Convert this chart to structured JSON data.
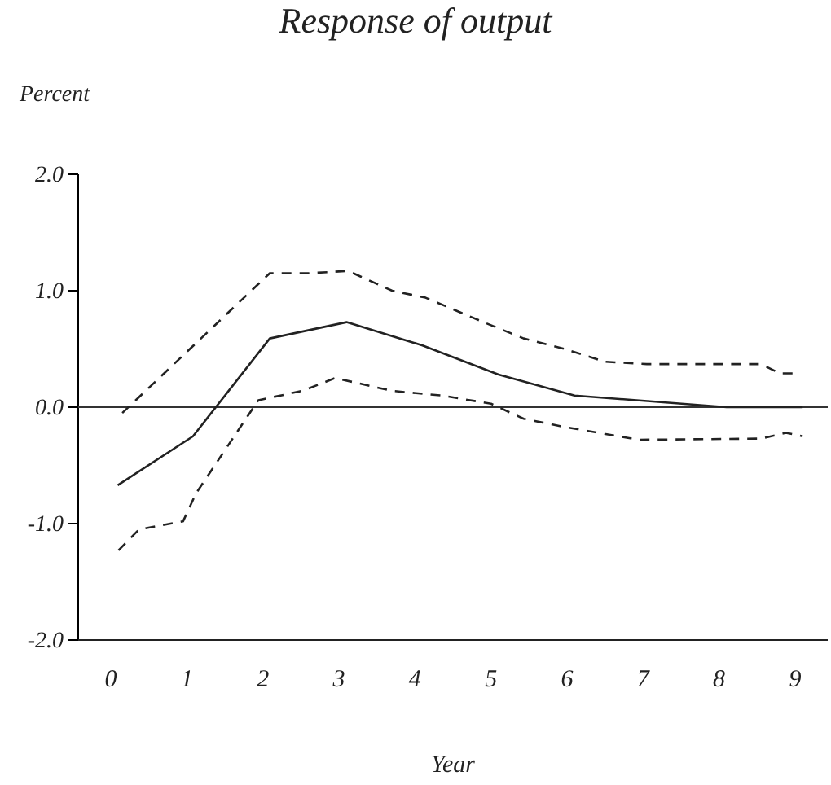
{
  "chart_data": {
    "type": "line",
    "title": "Response of output",
    "ylabel": "Percent",
    "xlabel": "Year",
    "xlim": [
      -0.43,
      9.43
    ],
    "xticks": [
      0,
      1,
      2,
      3,
      4,
      5,
      6,
      7,
      8,
      9
    ],
    "ylim": [
      -2.0,
      2.0
    ],
    "yticks": [
      {
        "value": -2,
        "label": "-2.0"
      },
      {
        "value": -1,
        "label": "-1.0"
      },
      {
        "value": 0,
        "label": "0.0"
      },
      {
        "value": 1,
        "label": "1.0"
      },
      {
        "value": 2,
        "label": "2.0"
      }
    ],
    "ref_lines": [
      {
        "axis": "y",
        "value": 0,
        "color": "#333333",
        "line_style": "solid"
      }
    ],
    "series": [
      {
        "color": "#222222",
        "line_style": "solid",
        "x": [
          0.09,
          1.08,
          2.09,
          3.1,
          4.1,
          5.1,
          6.1,
          8.1,
          9.1
        ],
        "values": [
          -0.67,
          -0.25,
          0.59,
          0.73,
          0.53,
          0.28,
          0.1,
          0,
          0
        ]
      },
      {
        "color": "#222222",
        "line_style": "dashed",
        "x": [
          0.15,
          2.09,
          2.6,
          3.12,
          3.7,
          4.14,
          4.9,
          5.43,
          5.97,
          6.5,
          7.05,
          8.55,
          8.8,
          9.03
        ],
        "values": [
          -0.05,
          1.15,
          1.15,
          1.17,
          1.0,
          0.94,
          0.73,
          0.59,
          0.5,
          0.39,
          0.37,
          0.37,
          0.29,
          0.29
        ]
      },
      {
        "color": "#222222",
        "line_style": "dashed",
        "x": [
          0.1,
          0.37,
          0.95,
          1.12,
          1.94,
          2.52,
          2.95,
          3.7,
          4.35,
          5.0,
          5.43,
          5.97,
          6.94,
          8.55,
          8.88,
          9.1
        ],
        "values": [
          -1.23,
          -1.05,
          -0.98,
          -0.74,
          0.06,
          0.14,
          0.25,
          0.14,
          0.1,
          0.03,
          -0.1,
          -0.17,
          -0.28,
          -0.27,
          -0.22,
          -0.25
        ]
      }
    ]
  }
}
